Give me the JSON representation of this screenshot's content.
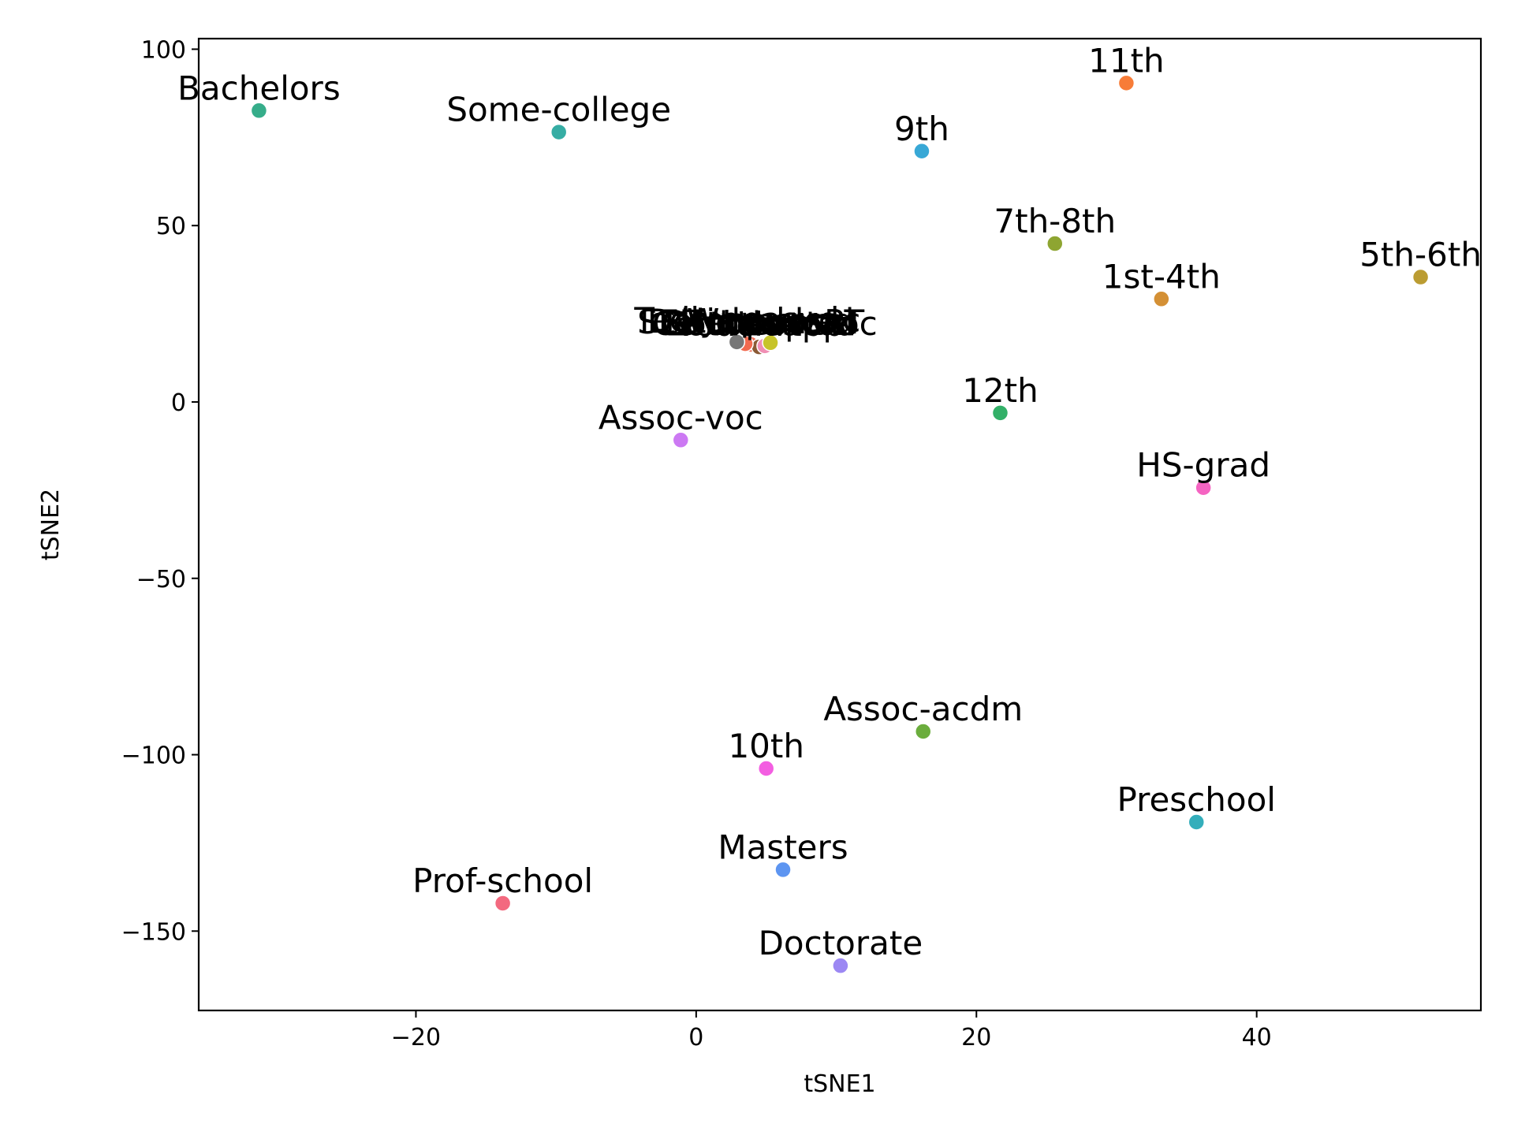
{
  "chart_data": {
    "type": "scatter",
    "title": "",
    "xlabel": "tSNE1",
    "ylabel": "tSNE2",
    "xlim": [
      -35.5,
      56
    ],
    "ylim": [
      -172.5,
      103
    ],
    "xticks": [
      -20,
      0,
      20,
      40
    ],
    "yticks": [
      -150,
      -100,
      -50,
      0,
      50,
      100
    ],
    "grid": false,
    "points": [
      {
        "label": "Bachelors",
        "x": -31.2,
        "y": 82.6,
        "color": "#36ad8a"
      },
      {
        "label": "Some-college",
        "x": -9.8,
        "y": 76.5,
        "color": "#36ada4"
      },
      {
        "label": "11th",
        "x": 30.7,
        "y": 90.4,
        "color": "#f77c38"
      },
      {
        "label": "9th",
        "x": 16.1,
        "y": 71.1,
        "color": "#38a8d6"
      },
      {
        "label": "7th-8th",
        "x": 25.6,
        "y": 44.9,
        "color": "#8ea531"
      },
      {
        "label": "1st-4th",
        "x": 33.2,
        "y": 29.2,
        "color": "#d49035"
      },
      {
        "label": "5th-6th",
        "x": 51.7,
        "y": 35.4,
        "color": "#bb9c32"
      },
      {
        "label": "12th",
        "x": 21.7,
        "y": -3.1,
        "color": "#33b068"
      },
      {
        "label": "Assoc-voc",
        "x": -1.1,
        "y": -10.8,
        "color": "#cc79f3"
      },
      {
        "label": "HS-grad",
        "x": 36.2,
        "y": -24.3,
        "color": "#f564c2"
      },
      {
        "label": "Assoc-acdm",
        "x": 16.2,
        "y": -93.4,
        "color": "#6bad3d"
      },
      {
        "label": "10th",
        "x": 5.0,
        "y": -103.9,
        "color": "#f35ee1"
      },
      {
        "label": "Preschool",
        "x": 35.7,
        "y": -119.1,
        "color": "#34aebb"
      },
      {
        "label": "Masters",
        "x": 6.2,
        "y": -132.6,
        "color": "#5d95f1"
      },
      {
        "label": "Prof-school",
        "x": -13.8,
        "y": -142.1,
        "color": "#f3697f"
      },
      {
        "label": "Doctorate",
        "x": 10.3,
        "y": -159.8,
        "color": "#9c88f3"
      },
      {
        "label": "Wdrnaked",
        "x": 5.3,
        "y": 16.6,
        "color": "#d4a2d0"
      },
      {
        "label": "Cemteanse",
        "x": 4.2,
        "y": 16.0,
        "color": "#e9786c"
      },
      {
        "label": "Eothdeaord",
        "x": 4.6,
        "y": 15.8,
        "color": "#9a7353"
      },
      {
        "label": "SEDeopoasPT",
        "x": 3.9,
        "y": 16.3,
        "color": "#f06d56"
      },
      {
        "label": "Vouchrtpp",
        "x": 4.5,
        "y": 15.6,
        "color": "#8b5a36"
      },
      {
        "label": "Certbeuptaoc",
        "x": 4.9,
        "y": 15.9,
        "color": "#f08fb4"
      },
      {
        "label": "Dotiemvosc",
        "x": 3.5,
        "y": 16.5,
        "color": "#f26a4f"
      },
      {
        "label": "Tedlynpasvd",
        "x": 2.9,
        "y": 17.0,
        "color": "#777777"
      },
      {
        "label": "Hocmlvsac",
        "x": 5.3,
        "y": 16.8,
        "color": "#c7c42a"
      }
    ]
  }
}
